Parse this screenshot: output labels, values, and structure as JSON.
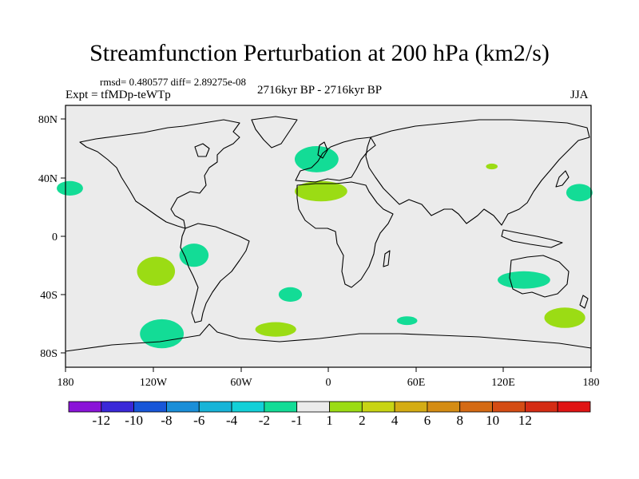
{
  "title": "Streamfunction Perturbation at 200 hPa (km2/s)",
  "stats": "rmsd= 0.480577  diff= 2.89275e-08",
  "experiment": "Expt = tfMDp-teWTp",
  "period": "2716kyr BP - 2716kyr BP",
  "season": "JJA",
  "colors": {
    "background": "#ebebeb",
    "coast": "#000000",
    "level_1_2": "#9bdc14",
    "level_m1_m2": "#13dc96"
  },
  "axes": {
    "lon_labels": [
      "180",
      "120W",
      "60W",
      "0",
      "60E",
      "120E",
      "180"
    ],
    "lat_labels": [
      "80N",
      "40N",
      "0",
      "40S",
      "80S"
    ]
  },
  "colorbar": {
    "colors": [
      "#8a14d8",
      "#3a28d8",
      "#1856d8",
      "#1a8ed8",
      "#18b4d8",
      "#13d0d8",
      "#13dc96",
      "#ebebeb",
      "#9bdc14",
      "#c8d414",
      "#d4ac14",
      "#d48c14",
      "#d46a14",
      "#d44c14",
      "#d42c14",
      "#e01414"
    ],
    "labels": [
      "-12",
      "-10",
      "-8",
      "-6",
      "-4",
      "-2",
      "-1",
      "1",
      "2",
      "4",
      "6",
      "8",
      "10",
      "12"
    ]
  },
  "anomalies": [
    {
      "lon": -177,
      "lat": 33,
      "rlon": 9,
      "rlat": 5,
      "level": "-1"
    },
    {
      "lon": -118,
      "lat": -24,
      "rlon": 13,
      "rlat": 10,
      "level": "1"
    },
    {
      "lon": -92,
      "lat": -13,
      "rlon": 10,
      "rlat": 8,
      "level": "-1"
    },
    {
      "lon": -114,
      "lat": -67,
      "rlon": 15,
      "rlat": 10,
      "level": "-1"
    },
    {
      "lon": -26,
      "lat": -40,
      "rlon": 8,
      "rlat": 5,
      "level": "-1"
    },
    {
      "lon": -36,
      "lat": -64,
      "rlon": 14,
      "rlat": 5,
      "level": "1"
    },
    {
      "lon": -8,
      "lat": 53,
      "rlon": 15,
      "rlat": 9,
      "level": "-1"
    },
    {
      "lon": -5,
      "lat": 31,
      "rlon": 18,
      "rlat": 7,
      "level": "1"
    },
    {
      "lon": 54,
      "lat": -58,
      "rlon": 7,
      "rlat": 3,
      "level": "-1"
    },
    {
      "lon": 112,
      "lat": 48,
      "rlon": 4,
      "rlat": 2,
      "level": "1"
    },
    {
      "lon": 134,
      "lat": -30,
      "rlon": 18,
      "rlat": 6,
      "level": "-1"
    },
    {
      "lon": 172,
      "lat": 30,
      "rlon": 9,
      "rlat": 6,
      "level": "-1"
    },
    {
      "lon": 162,
      "lat": -56,
      "rlon": 14,
      "rlat": 7,
      "level": "1"
    }
  ]
}
